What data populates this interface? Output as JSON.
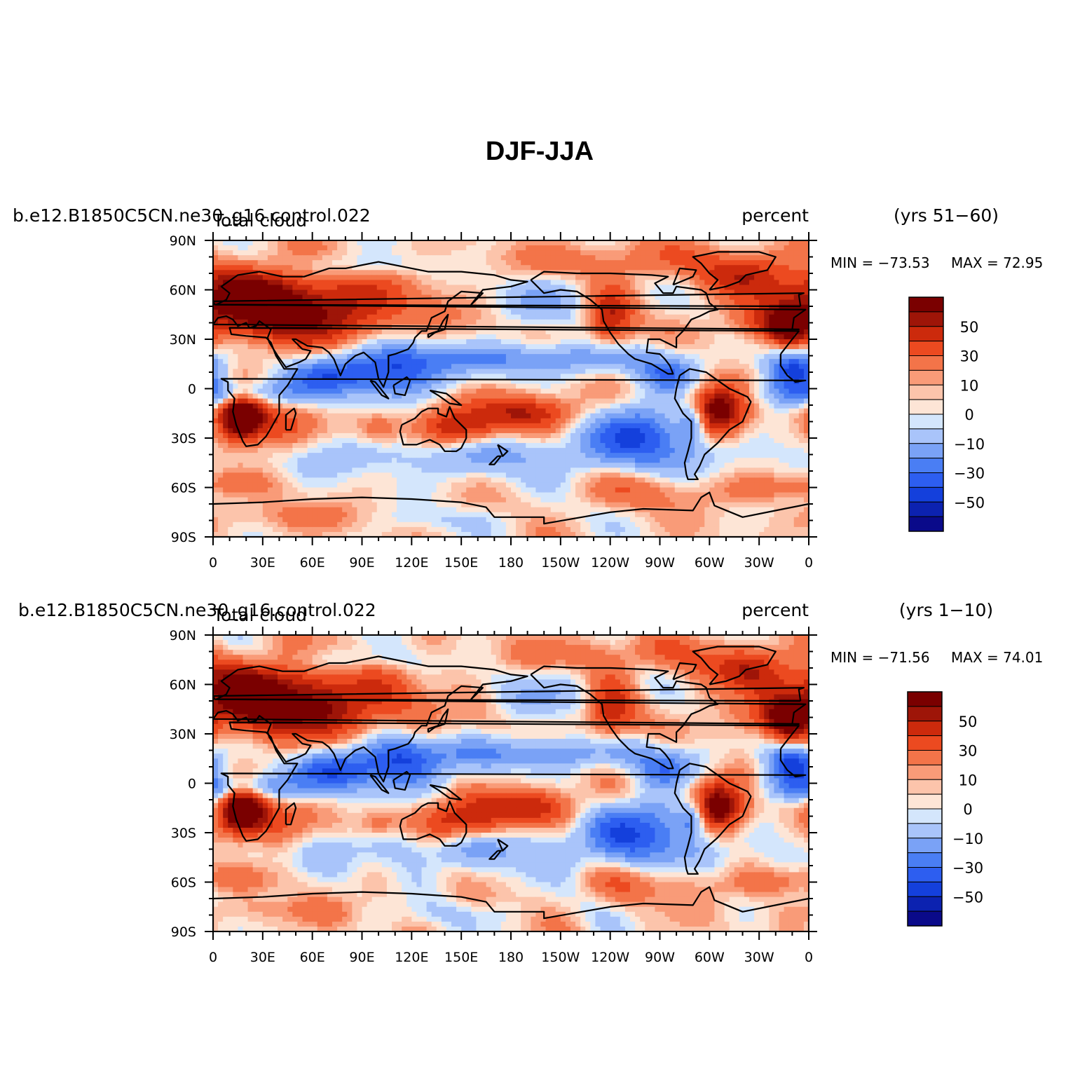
{
  "figure_title": "DJF-JJA",
  "colors": {
    "levels": [
      "#0a0a8a",
      "#0c22b0",
      "#1440dc",
      "#2d5ef0",
      "#4a7ef4",
      "#7aa2f6",
      "#a9c4fa",
      "#d4e6fc",
      "#fde5d6",
      "#fcc4ab",
      "#f99b78",
      "#f37449",
      "#ec4a20",
      "#cc2a0c",
      "#9e1508",
      "#7a0000"
    ]
  },
  "chart_data": [
    {
      "type": "heatmap",
      "case_name": "b.e12.B1850C5CN.ne30_g16.control.022",
      "variable": "Total cloud",
      "units": "percent",
      "period": "(yrs 51−60)",
      "min_label": "MIN = −73.53",
      "max_label": "MAX =  72.95",
      "min": -73.53,
      "max": 72.95,
      "x_tick_labels": [
        "0",
        "30E",
        "60E",
        "90E",
        "120E",
        "150E",
        "180",
        "150W",
        "120W",
        "90W",
        "60W",
        "30W",
        "0"
      ],
      "y_tick_labels": [
        "90N",
        "60N",
        "30N",
        "0",
        "30S",
        "60S",
        "90S"
      ],
      "xlim": [
        0,
        360
      ],
      "ylim": [
        -90,
        90
      ],
      "colorbar_labels": [
        "50",
        "30",
        "10",
        "0",
        "−10",
        "−30",
        "−50"
      ],
      "contour_levels": [
        -70,
        -60,
        -50,
        -40,
        -30,
        -20,
        -10,
        -5,
        0,
        5,
        10,
        20,
        30,
        40,
        50,
        60,
        70
      ]
    },
    {
      "type": "heatmap",
      "case_name": "b.e12.B1850C5CN.ne30_g16.control.022",
      "variable": "Total cloud",
      "units": "percent",
      "period": "(yrs 1−10)",
      "min_label": "MIN = −71.56",
      "max_label": "MAX =  74.01",
      "min": -71.56,
      "max": 74.01,
      "x_tick_labels": [
        "0",
        "30E",
        "60E",
        "90E",
        "120E",
        "150E",
        "180",
        "150W",
        "120W",
        "90W",
        "60W",
        "30W",
        "0"
      ],
      "y_tick_labels": [
        "90N",
        "60N",
        "30N",
        "0",
        "30S",
        "60S",
        "90S"
      ],
      "xlim": [
        0,
        360
      ],
      "ylim": [
        -90,
        90
      ],
      "colorbar_labels": [
        "50",
        "30",
        "10",
        "0",
        "−10",
        "−30",
        "−50"
      ],
      "contour_levels": [
        -70,
        -60,
        -50,
        -40,
        -30,
        -20,
        -10,
        -5,
        0,
        5,
        10,
        20,
        30,
        40,
        50,
        60,
        70
      ]
    }
  ]
}
